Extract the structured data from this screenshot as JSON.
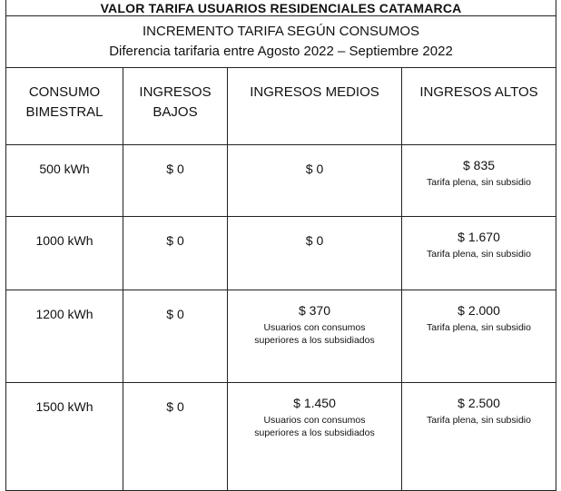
{
  "title": "VALOR TARIFA USUARIOS RESIDENCIALES CATAMARCA",
  "subtitle": "INCREMENTO TARIFA SEGÚN CONSUMOS",
  "caption": "Diferencia tarifaria entre Agosto 2022 – Septiembre 2022",
  "table": {
    "header": [
      "CONSUMO BIMESTRAL",
      "INGRESOS BAJOS",
      "INGRESOS MEDIOS",
      "INGRESOS ALTOS"
    ],
    "rows": [
      [
        {
          "value": "500 kWh"
        },
        {
          "value": "$ 0"
        },
        {
          "value": "$ 0"
        },
        {
          "value": "$ 835",
          "note": "Tarifa plena, sin subsidio"
        }
      ],
      [
        {
          "value": "1000 kWh"
        },
        {
          "value": "$ 0"
        },
        {
          "value": "$ 0"
        },
        {
          "value": "$ 1.670",
          "note": "Tarifa plena, sin subsidio"
        }
      ],
      [
        {
          "value": "1200 kWh"
        },
        {
          "value": "$ 0"
        },
        {
          "value": "$ 370",
          "note": "Usuarios con consumos superiores a los subsidiados"
        },
        {
          "value": "$ 2.000",
          "note": "Tarifa plena, sin subsidio"
        }
      ],
      [
        {
          "value": "1500 kWh"
        },
        {
          "value": "$ 0"
        },
        {
          "value": "$ 1.450",
          "note": "Usuarios con consumos superiores a los subsidiados"
        },
        {
          "value": "$ 2.500",
          "note": "Tarifa plena, sin subsidio"
        }
      ]
    ]
  }
}
